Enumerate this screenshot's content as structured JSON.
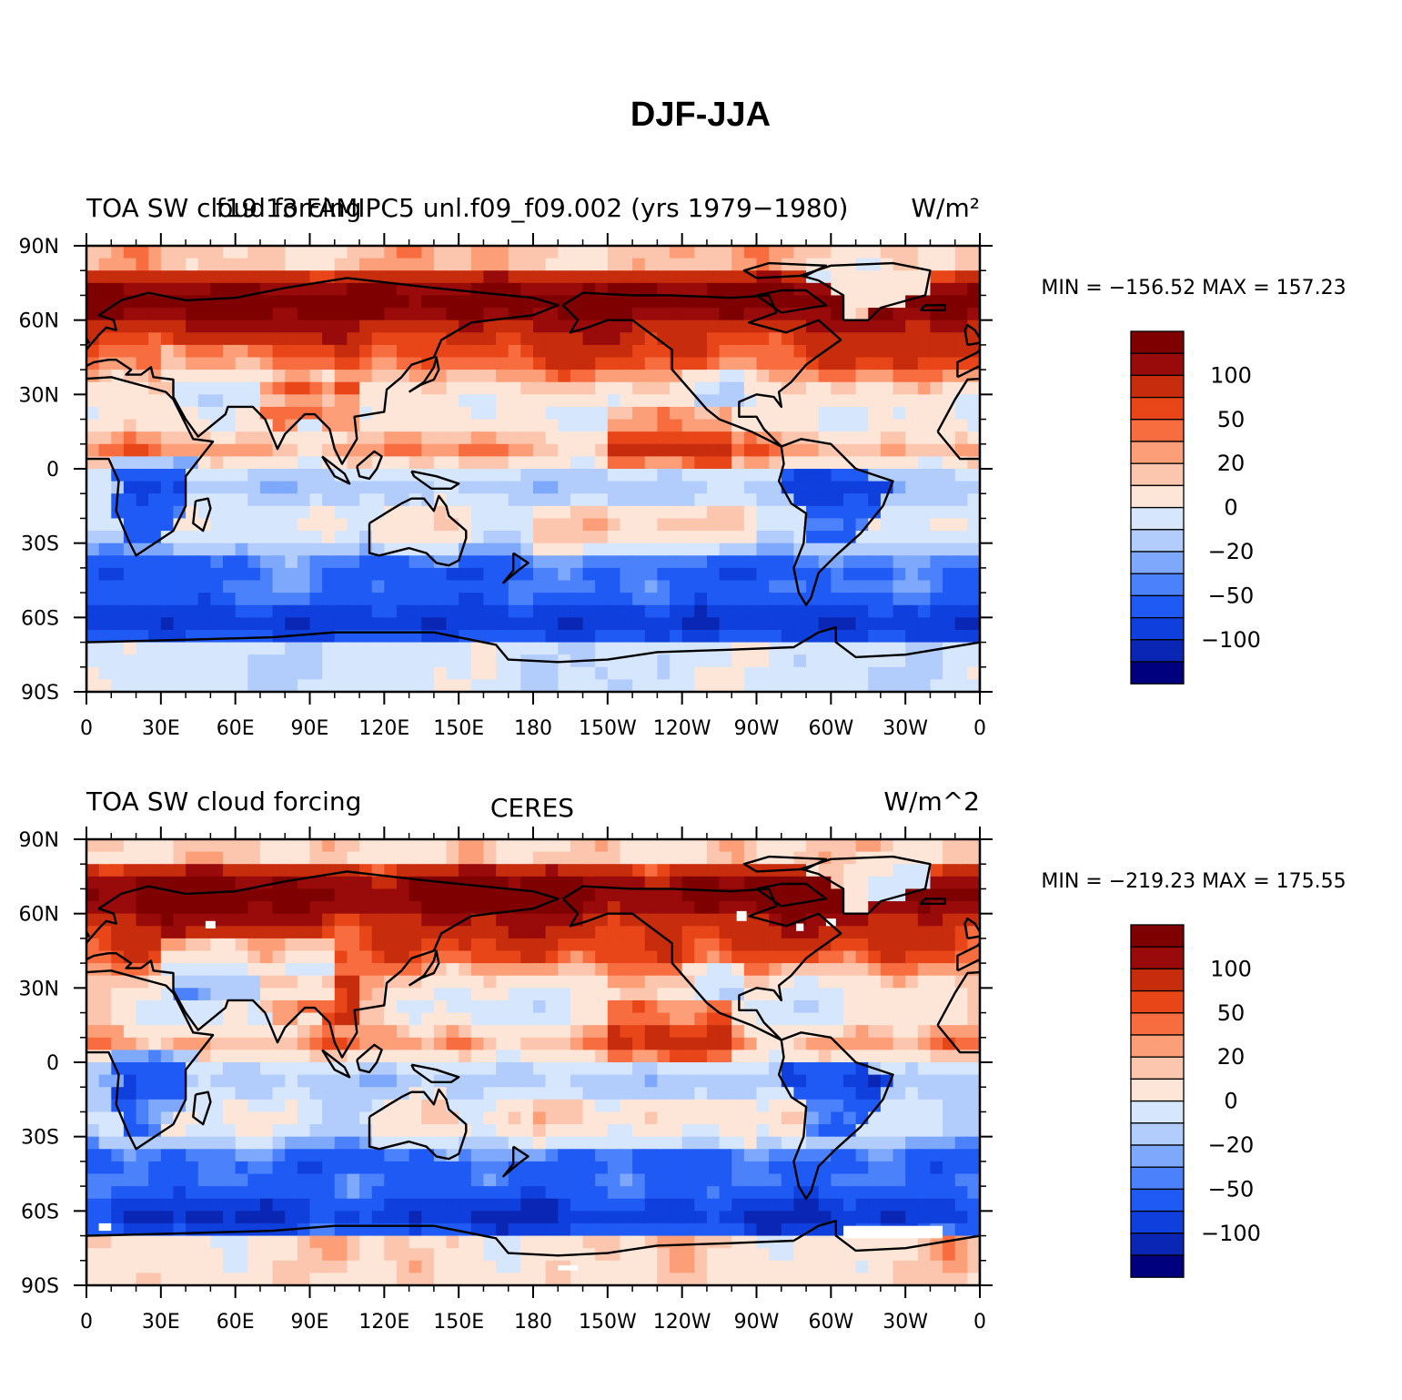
{
  "figure_title": "DJF-JJA",
  "colors": {
    "palette": [
      "#00007f",
      "#0a26b4",
      "#0f3fdc",
      "#1f5af5",
      "#4b82fb",
      "#7ea8fb",
      "#b2ccfb",
      "#d6e6fc",
      "#fde6d8",
      "#fcc6ae",
      "#fc9e78",
      "#f86d40",
      "#e84518",
      "#c72c0d",
      "#990b0a",
      "#7f0000"
    ],
    "land_outline": "#000000"
  },
  "colorbar_labels": [
    "100",
    "50",
    "20",
    "0",
    "−20",
    "−50",
    "−100"
  ],
  "chart_data": [
    {
      "type": "heatmap",
      "panel": "top",
      "title_left": "TOA SW cloud forcing",
      "title_center": "f19 13 FAMIPC5 unl.f09_f09.002 (yrs 1979−1980)",
      "title_right": "W/m²",
      "stats": "MIN = −156.52  MAX = 157.23",
      "min": -156.52,
      "max": 157.23,
      "units": "W/m^2",
      "levels": [
        -150,
        -120,
        -100,
        -80,
        -60,
        -50,
        -40,
        -20,
        0,
        20,
        30,
        40,
        50,
        60,
        80,
        100,
        120
      ],
      "x_ticks": [
        "0",
        "30E",
        "60E",
        "90E",
        "120E",
        "150E",
        "180",
        "150W",
        "120W",
        "90W",
        "60W",
        "30W",
        "0"
      ],
      "y_ticks": [
        "90N",
        "60N",
        "30N",
        "0",
        "30S",
        "60S",
        "90S"
      ],
      "xlim": [
        0,
        360
      ],
      "ylim": [
        -90,
        90
      ]
    },
    {
      "type": "heatmap",
      "panel": "bottom",
      "title_left": "TOA SW cloud forcing",
      "title_center": "CERES",
      "title_right": "W/m^2",
      "stats": "MIN = −219.23  MAX = 175.55",
      "min": -219.23,
      "max": 175.55,
      "units": "W/m^2",
      "levels": [
        -150,
        -120,
        -100,
        -80,
        -60,
        -50,
        -40,
        -20,
        0,
        20,
        30,
        40,
        50,
        60,
        80,
        100,
        120
      ],
      "x_ticks": [
        "0",
        "30E",
        "60E",
        "90E",
        "120E",
        "150E",
        "180",
        "150W",
        "120W",
        "90W",
        "60W",
        "30W",
        "0"
      ],
      "y_ticks": [
        "90N",
        "60N",
        "30N",
        "0",
        "30S",
        "60S",
        "90S"
      ],
      "xlim": [
        0,
        360
      ],
      "ylim": [
        -90,
        90
      ]
    }
  ]
}
